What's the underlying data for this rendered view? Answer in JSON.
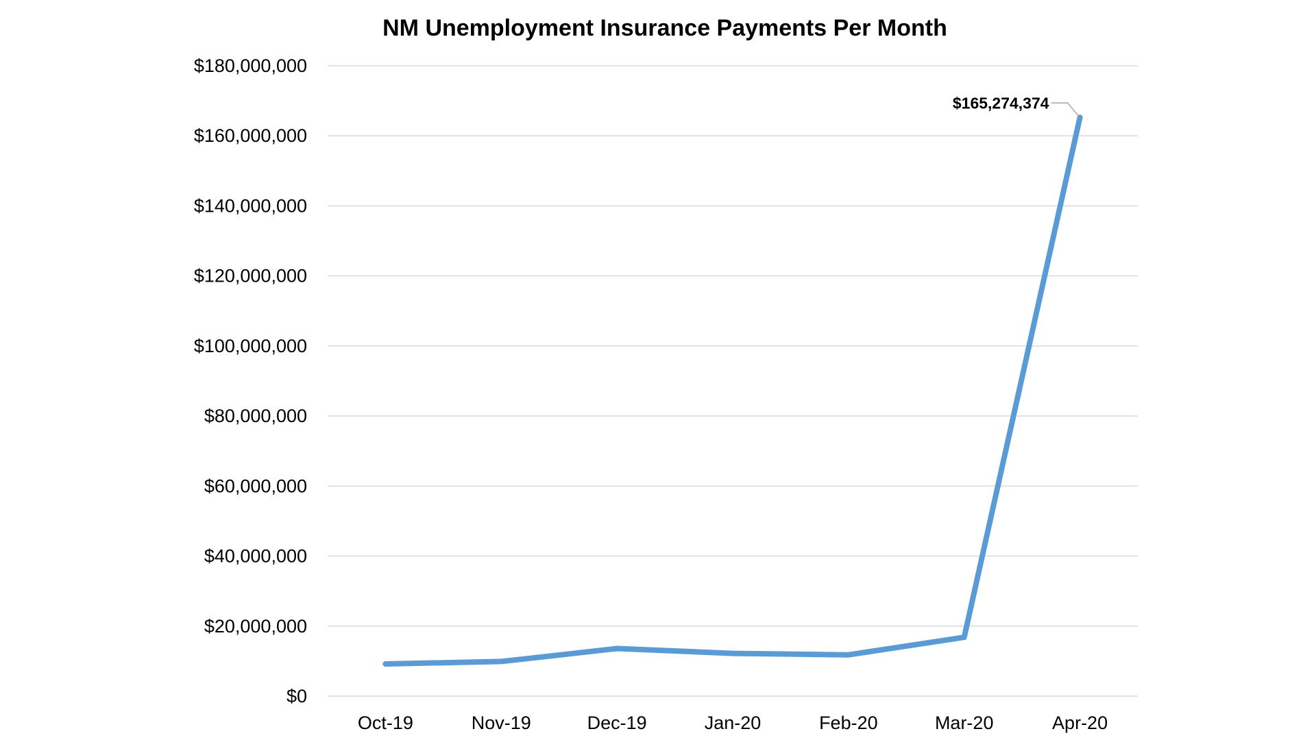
{
  "chart_data": {
    "type": "line",
    "title": "NM Unemployment Insurance Payments Per Month",
    "xlabel": "",
    "ylabel": "",
    "categories": [
      "Oct-19",
      "Nov-19",
      "Dec-19",
      "Jan-20",
      "Feb-20",
      "Mar-20",
      "Apr-20"
    ],
    "series": [
      {
        "values": [
          9200000,
          9900000,
          13600000,
          12200000,
          11800000,
          16800000,
          165274374
        ]
      }
    ],
    "ylim": [
      0,
      180000000
    ],
    "yticks": [
      0,
      20000000,
      40000000,
      60000000,
      80000000,
      100000000,
      120000000,
      140000000,
      160000000,
      180000000
    ],
    "ytick_labels": [
      "$0",
      "$20,000,000",
      "$40,000,000",
      "$60,000,000",
      "$80,000,000",
      "$100,000,000",
      "$120,000,000",
      "$140,000,000",
      "$160,000,000",
      "$180,000,000"
    ],
    "data_labels": [
      {
        "category": "Apr-20",
        "value": 165274374,
        "text": "$165,274,374"
      }
    ],
    "grid": "horizontal",
    "legend": "none",
    "colors": {
      "series": "#5b9bd5",
      "grid": "#d9d9d9",
      "leader": "#a6a6a6"
    }
  }
}
